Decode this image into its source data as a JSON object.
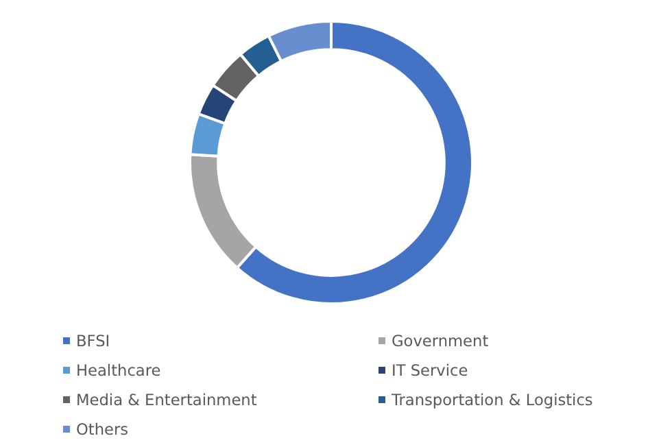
{
  "chart_data": {
    "type": "donut",
    "categories": [
      "BFSI",
      "Government",
      "Healthcare",
      "IT Service",
      "Media & Entertainment",
      "Transportation & Logistics",
      "Others"
    ],
    "values": [
      61.6,
      14.3,
      4.7,
      3.6,
      4.7,
      3.8,
      7.3
    ],
    "colors": [
      "#4472c4",
      "#a5a5a5",
      "#5b9bd5",
      "#264478",
      "#636363",
      "#255e91",
      "#698ed0"
    ],
    "legend": "bottom"
  }
}
